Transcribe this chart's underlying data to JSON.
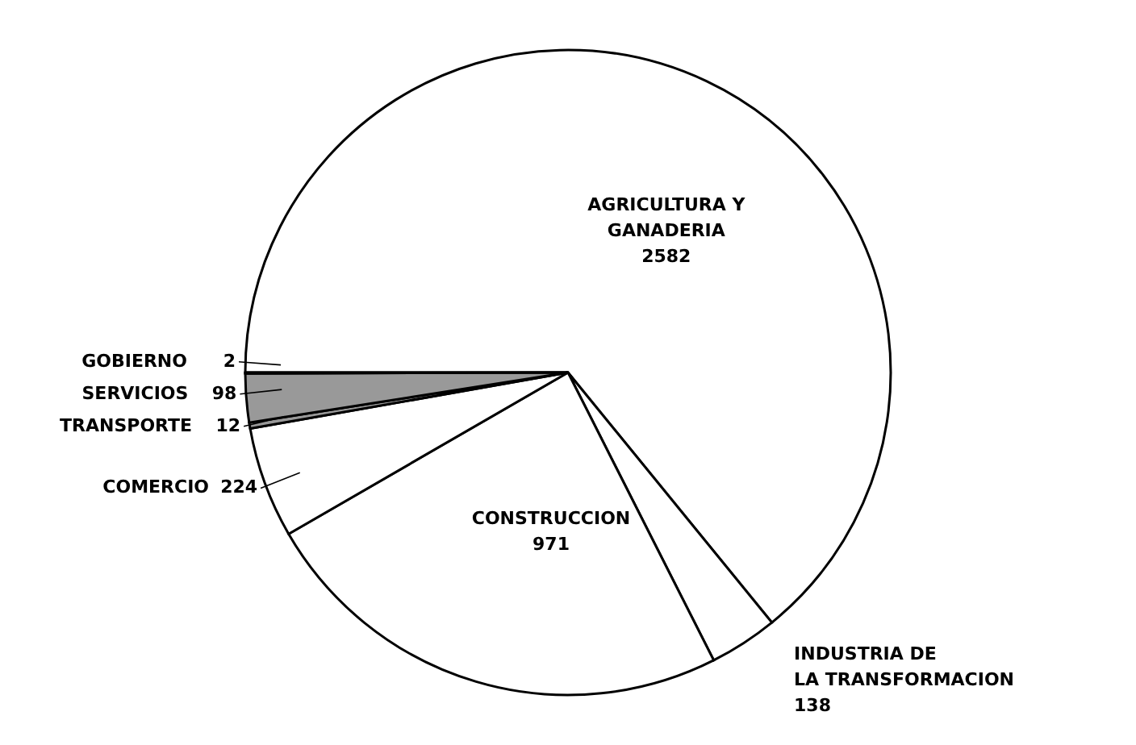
{
  "chart_data": {
    "type": "pie",
    "categories": [
      "AGRICULTURA Y GANADERIA",
      "INDUSTRIA DE LA TRANSFORMACION",
      "CONSTRUCCION",
      "COMERCIO",
      "TRANSPORTE",
      "SERVICIOS",
      "GOBIERNO"
    ],
    "values": [
      2582,
      138,
      971,
      224,
      12,
      98,
      2
    ],
    "colors": [
      "#ffffff",
      "#ffffff",
      "#ffffff",
      "#ffffff",
      "#999999",
      "#999999",
      "#999999"
    ],
    "data_labels": true,
    "legend": false
  }
}
